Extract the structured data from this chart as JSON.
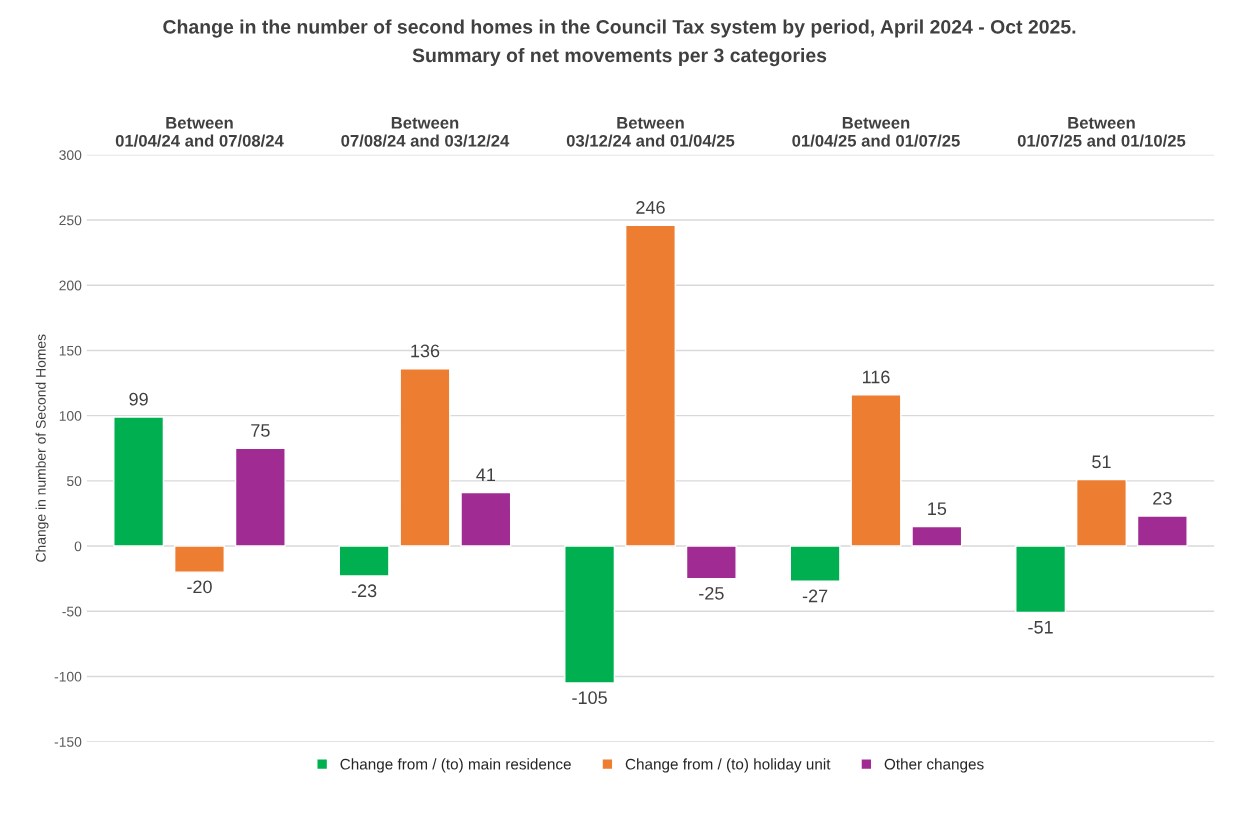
{
  "chart_data": {
    "type": "bar",
    "title": "Change in the number of second homes in the Council Tax system by period, April 2024 - Oct 2025.",
    "subtitle": "Summary of net movements per 3 categories",
    "ylabel": "Change in number of Second Homes",
    "categories": [
      "Between 01/04/24 and 07/08/24",
      "Between 07/08/24 and 03/12/24",
      "Between 03/12/24 and 01/04/25",
      "Between 01/04/25 and 01/07/25",
      "Between 01/07/25 and 01/10/25"
    ],
    "series": [
      {
        "name": "Change from / (to) main residence",
        "color": "#00b050",
        "values": [
          99,
          -23,
          -105,
          -27,
          -51
        ]
      },
      {
        "name": "Change from / (to) holiday unit",
        "color": "#ed7d31",
        "values": [
          -20,
          136,
          246,
          116,
          51
        ]
      },
      {
        "name": "Other changes",
        "color": "#a02b93",
        "values": [
          75,
          41,
          -25,
          15,
          23
        ]
      }
    ],
    "ylim": [
      -150,
      300
    ],
    "yticks": [
      -150,
      -100,
      -50,
      0,
      50,
      100,
      150,
      200,
      250,
      300
    ],
    "grid": "y",
    "legend": "bottom",
    "data_labels": true
  }
}
